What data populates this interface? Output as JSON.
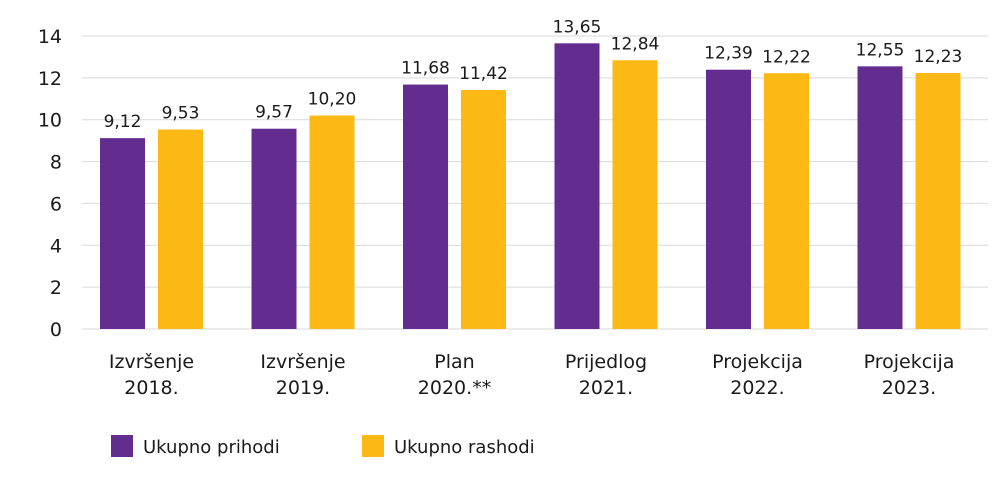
{
  "chart_data": {
    "type": "bar",
    "categories": [
      [
        "Izvršenje",
        "2018."
      ],
      [
        "Izvršenje",
        "2019."
      ],
      [
        "Plan",
        "2020.**"
      ],
      [
        "Prijedlog",
        "2021."
      ],
      [
        "Projekcija",
        "2022."
      ],
      [
        "Projekcija",
        "2023."
      ]
    ],
    "series": [
      {
        "name": "Ukupno prihodi",
        "color": "#622d8f",
        "values": [
          9.12,
          9.57,
          11.68,
          13.65,
          12.39,
          12.55
        ],
        "labels": [
          "9,12",
          "9,57",
          "11,68",
          "13,65",
          "12,39",
          "12,55"
        ]
      },
      {
        "name": "Ukupno rashodi",
        "color": "#fdb913",
        "values": [
          9.53,
          10.2,
          11.42,
          12.84,
          12.22,
          12.23
        ],
        "labels": [
          "9,53",
          "10,20",
          "11,42",
          "12,84",
          "12,22",
          "12,23"
        ]
      }
    ],
    "ylim": [
      0,
      14
    ],
    "yticks": [
      0,
      2,
      4,
      6,
      8,
      10,
      12,
      14
    ],
    "grid": true,
    "legend_position": "bottom-left"
  }
}
